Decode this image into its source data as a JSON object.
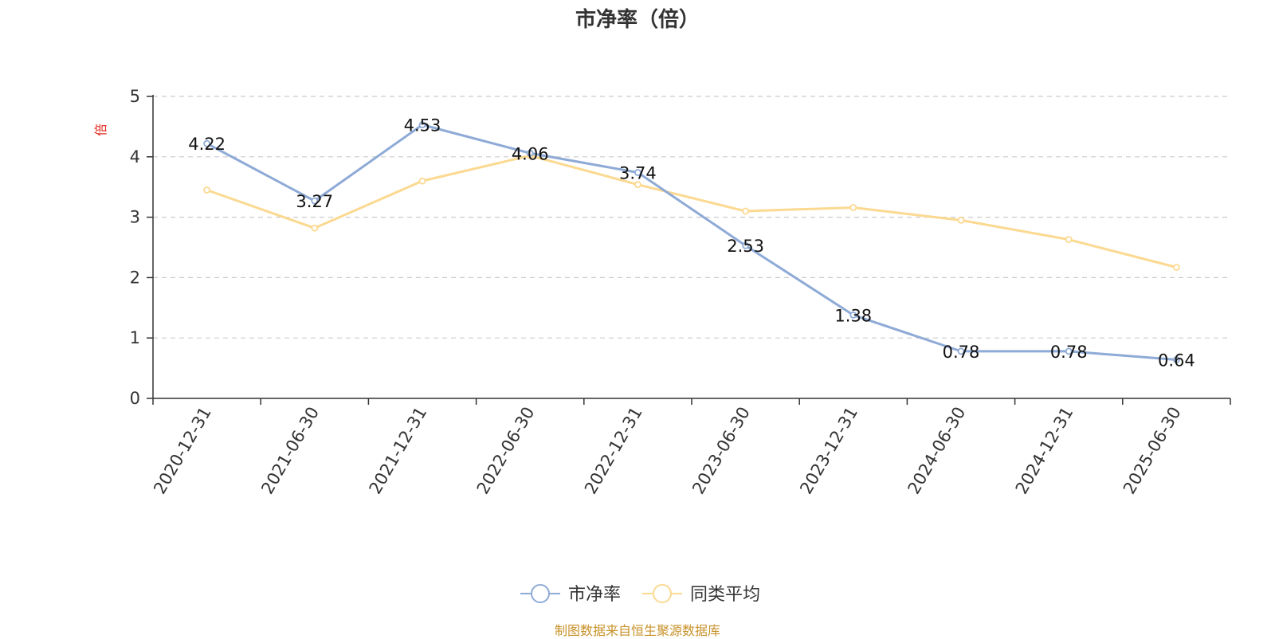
{
  "chart_data": {
    "type": "line",
    "title": "市净率（倍）",
    "ylabel": "倍",
    "categories": [
      "2020-12-31",
      "2021-06-30",
      "2021-12-31",
      "2022-06-30",
      "2022-12-31",
      "2023-06-30",
      "2023-12-31",
      "2024-06-30",
      "2024-12-31",
      "2025-06-30"
    ],
    "ylim": [
      0,
      5
    ],
    "yticks": [
      0,
      1,
      2,
      3,
      4,
      5
    ],
    "grid": true,
    "legend_position": "bottom",
    "series": [
      {
        "name": "市净率",
        "color": "#8eaad6",
        "values": [
          4.22,
          3.27,
          4.53,
          4.06,
          3.74,
          2.53,
          1.38,
          0.78,
          0.78,
          0.64
        ],
        "labels": [
          "4.22",
          "3.27",
          "4.53",
          "4.06",
          "3.74",
          "2.53",
          "1.38",
          "0.78",
          "0.78",
          "0.64"
        ]
      },
      {
        "name": "同类平均",
        "color": "#fbd991",
        "values": [
          3.45,
          2.82,
          3.6,
          4.02,
          3.54,
          3.1,
          3.16,
          2.95,
          2.63,
          2.17
        ]
      }
    ]
  },
  "source": "制图数据来自恒生聚源数据库"
}
